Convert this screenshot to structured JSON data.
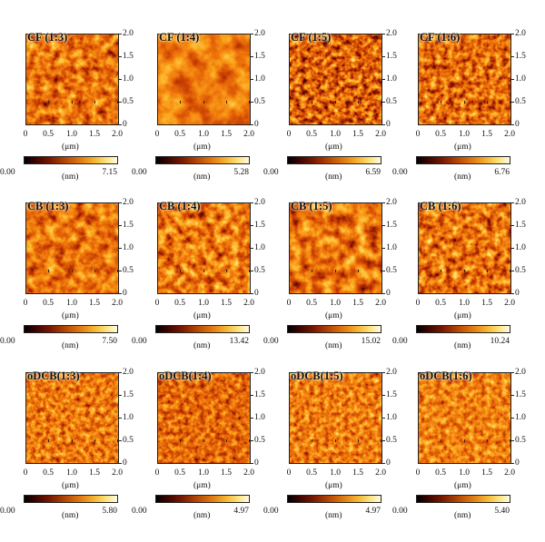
{
  "figure": {
    "x_axis_label": "(μm)",
    "colorbar_unit": "(nm)",
    "x_ticks": [
      "0",
      "0.5",
      "1.0",
      "1.5",
      "2.0"
    ],
    "y_ticks": [
      "2.0",
      "1.5",
      "1.0",
      "0.5",
      "0"
    ],
    "colors": {
      "min": "#000000",
      "mid": "#c85a0a",
      "max": "#fffbe5"
    },
    "panels": [
      {
        "label": "CF (1:3)",
        "min": "0.00",
        "max": "7.15",
        "height_max_nm": 7.15
      },
      {
        "label": "CF (1:4)",
        "min": "0.00",
        "max": "5.28",
        "height_max_nm": 5.28
      },
      {
        "label": "CF (1:5)",
        "min": "0.00",
        "max": "6.59",
        "height_max_nm": 6.59
      },
      {
        "label": "CF (1:6)",
        "min": "0.00",
        "max": "6.76",
        "height_max_nm": 6.76
      },
      {
        "label": "CB (1:3)",
        "min": "0.00",
        "max": "7.50",
        "height_max_nm": 7.5
      },
      {
        "label": "CB (1:4)",
        "min": "0.00",
        "max": "13.42",
        "height_max_nm": 13.42
      },
      {
        "label": "CB (1:5)",
        "min": "0.00",
        "max": "15.02",
        "height_max_nm": 15.02
      },
      {
        "label": "CB (1:6)",
        "min": "0.00",
        "max": "10.24",
        "height_max_nm": 10.24
      },
      {
        "label": "oDCB(1:3)",
        "min": "0.00",
        "max": "5.80",
        "height_max_nm": 5.8
      },
      {
        "label": "oDCB(1:4)",
        "min": "0.00",
        "max": "4.97",
        "height_max_nm": 4.97
      },
      {
        "label": "oDCB(1:5)",
        "min": "0.00",
        "max": "4.97",
        "height_max_nm": 4.97
      },
      {
        "label": "oDCB(1:6)",
        "min": "0.00",
        "max": "5.40",
        "height_max_nm": 5.4
      }
    ]
  }
}
